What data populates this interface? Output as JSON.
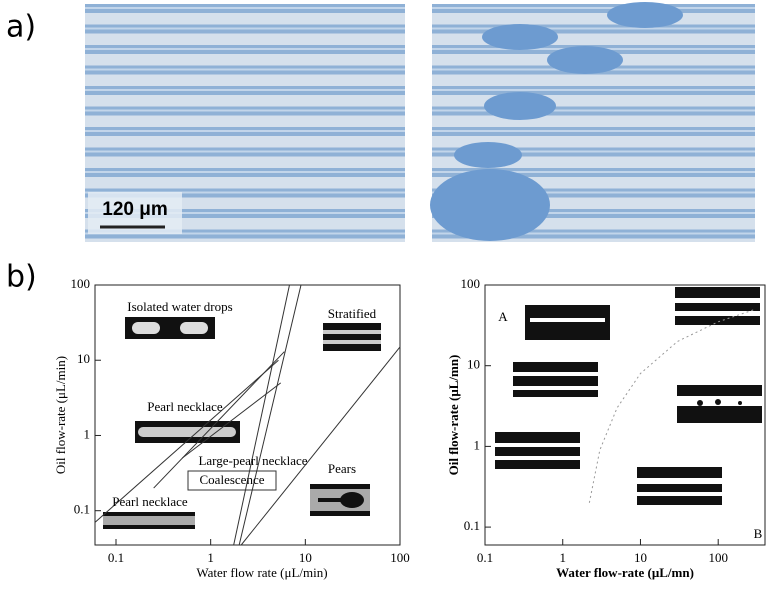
{
  "panel_labels": [
    "a)",
    "b)"
  ],
  "scale_bar": "120 μm",
  "chart_data": [
    {
      "type": "line",
      "log": true,
      "xlabel": "Water flow rate (μL/min)",
      "ylabel": "Oil flow-rate (μL/min)",
      "xlim": [
        0.06,
        100
      ],
      "ylim": [
        0.035,
        100
      ],
      "xticks": [
        0.1,
        1,
        10,
        100
      ],
      "yticks": [
        0.1,
        1,
        10,
        100
      ],
      "annotations": [
        "Isolated water drops",
        "Stratified",
        "Pearl necklace",
        "Large-pearl necklace",
        "Coalescence",
        "Pears",
        "Pearl necklace"
      ],
      "series": [
        {
          "color": "#333333",
          "x": [
            1.75,
            6.8
          ],
          "values": [
            0.035,
            100
          ]
        },
        {
          "color": "#333333",
          "x": [
            2.0,
            9
          ],
          "values": [
            0.035,
            100
          ]
        },
        {
          "color": "#333333",
          "x": [
            2.1,
            100
          ],
          "values": [
            0.035,
            15
          ]
        },
        {
          "color": "#333333",
          "x": [
            0.06,
            5.2
          ],
          "values": [
            0.07,
            10
          ]
        },
        {
          "color": "#333333",
          "x": [
            0.25,
            6
          ],
          "values": [
            0.2,
            13
          ]
        },
        {
          "color": "#333333",
          "x": [
            0.5,
            5.5
          ],
          "values": [
            0.5,
            5
          ]
        }
      ]
    },
    {
      "type": "line",
      "log": true,
      "dotted": true,
      "xlabel": "Water flow-rate (μL/mn)",
      "ylabel": "Oil flow-rate (μL/mn)",
      "xlim": [
        0.1,
        400
      ],
      "ylim": [
        0.06,
        100
      ],
      "xticks": [
        0.1,
        1,
        10,
        100
      ],
      "yticks": [
        0.1,
        1,
        10,
        100
      ],
      "annotations": [
        "A",
        "B"
      ],
      "series": [
        {
          "color": "#999999",
          "x": [
            2.2,
            3,
            5,
            10,
            30,
            100,
            300
          ],
          "values": [
            0.2,
            0.9,
            3,
            8,
            20,
            35,
            50
          ]
        }
      ]
    }
  ]
}
